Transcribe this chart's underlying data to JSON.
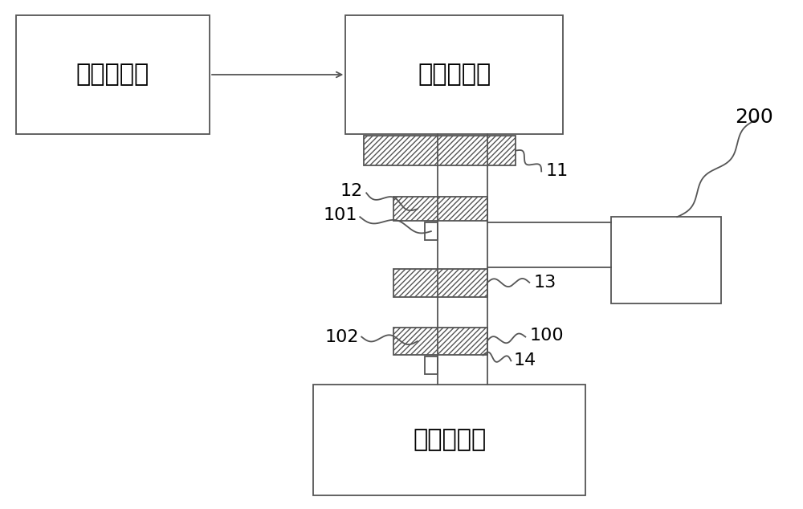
{
  "bg_color": "#ffffff",
  "line_color": "#555555",
  "box_left_label": "沸腾氯化炉",
  "box_top_label": "旋风收尘器",
  "box_bottom_label": "粉尘制浆罐",
  "label_200": "200",
  "label_11": "11",
  "label_12": "12",
  "label_13": "13",
  "label_14": "14",
  "label_100": "100",
  "label_101": "101",
  "label_102": "102",
  "font_size_box": 22,
  "font_size_label": 16,
  "font_size_200": 18
}
